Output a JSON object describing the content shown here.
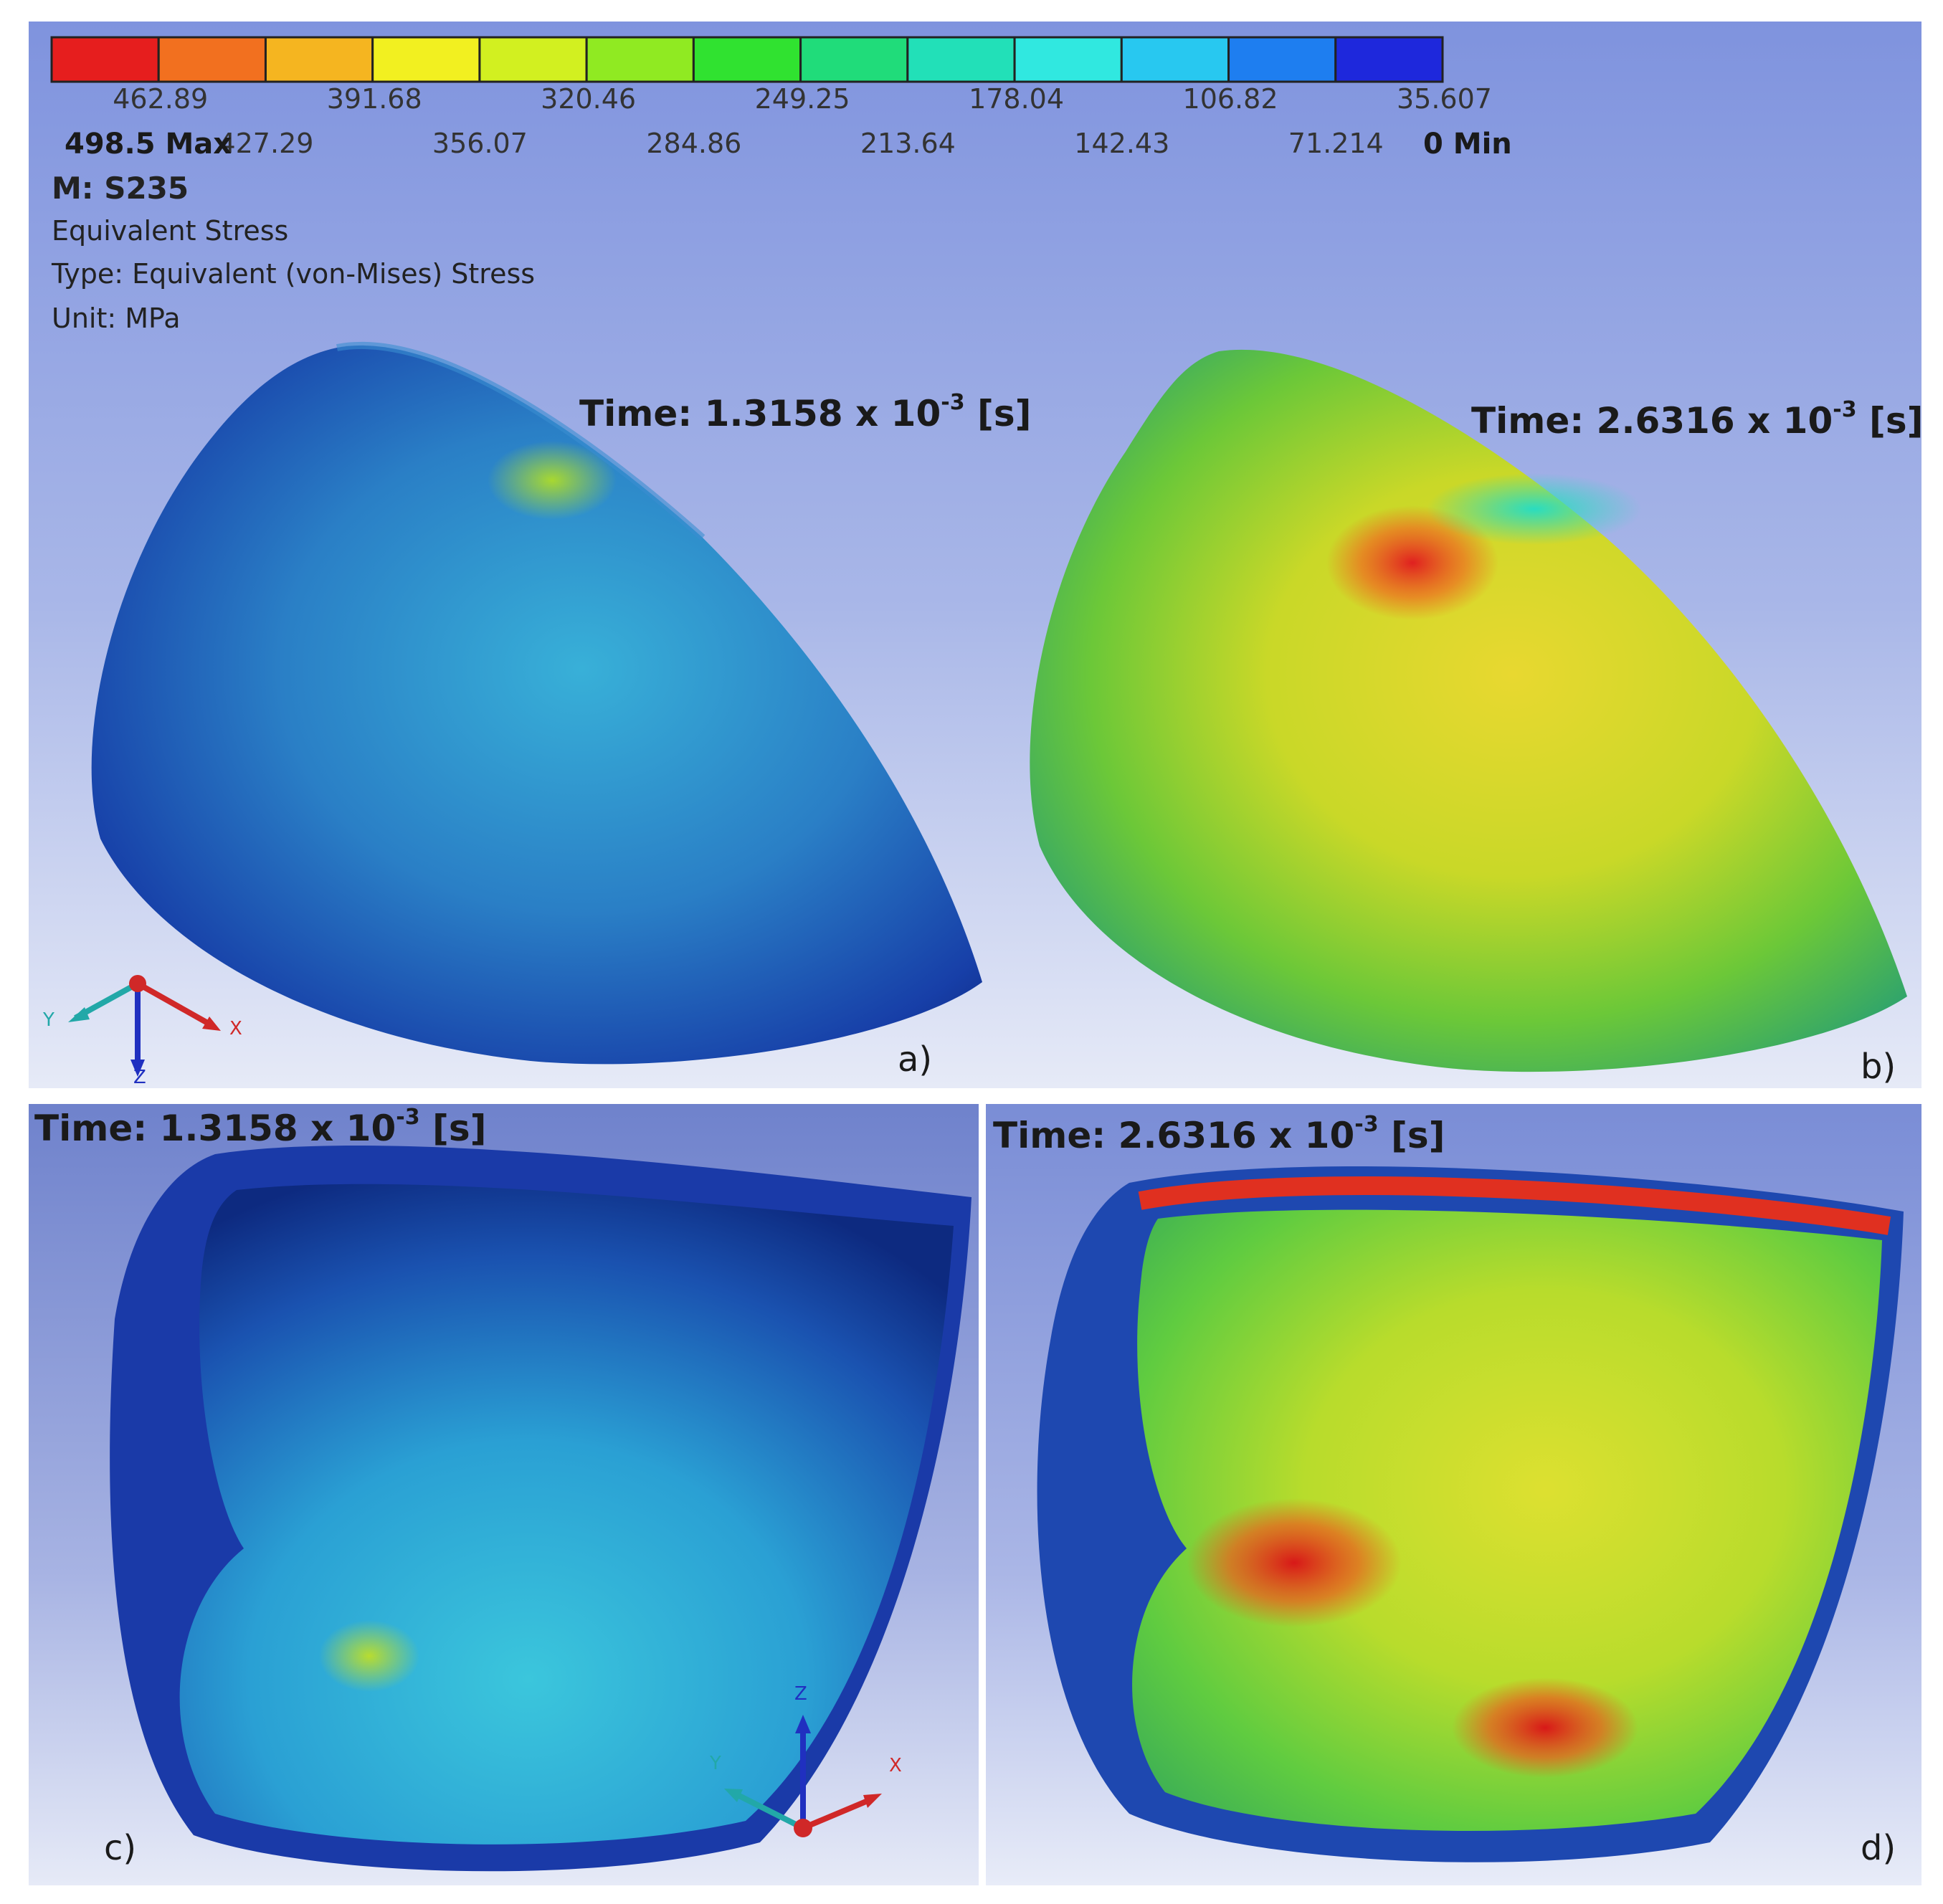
{
  "legend": {
    "colors": [
      "#e61e1e",
      "#f2701f",
      "#f5b520",
      "#f2f020",
      "#d2f020",
      "#90ea22",
      "#30e230",
      "#20dc7a",
      "#22e0b8",
      "#30e8e0",
      "#28c8f0",
      "#1e7ef0",
      "#1e28dc"
    ],
    "upper_values": [
      "462.89",
      "391.68",
      "320.46",
      "249.25",
      "178.04",
      "106.82",
      "35.607"
    ],
    "lower_values": [
      "427.29",
      "356.07",
      "284.86",
      "213.64",
      "142.43",
      "71.214"
    ],
    "max_label": "498.5 Max",
    "min_label": "0 Min"
  },
  "header": {
    "material": "M: S235",
    "result_name": "Equivalent Stress",
    "type_line": "Type: Equivalent (von-Mises) Stress",
    "unit_line": "Unit: MPa"
  },
  "panels": {
    "a": {
      "time_prefix": "Time: 1.3158 x 10",
      "time_exp": "-3",
      "time_suffix": " [s]",
      "letter": "a)"
    },
    "b": {
      "time_prefix": "Time: 2.6316 x 10",
      "time_exp": "-3",
      "time_suffix": " [s]",
      "letter": "b)"
    },
    "c": {
      "time_prefix": "Time: 1.3158 x 10",
      "time_exp": "-3",
      "time_suffix": " [s]",
      "letter": "c)"
    },
    "d": {
      "time_prefix": "Time: 2.6316 x 10",
      "time_exp": "-3",
      "time_suffix": " [s]",
      "letter": "d)"
    }
  },
  "axes_triad": {
    "x": "X",
    "y": "Y",
    "z": "Z"
  }
}
